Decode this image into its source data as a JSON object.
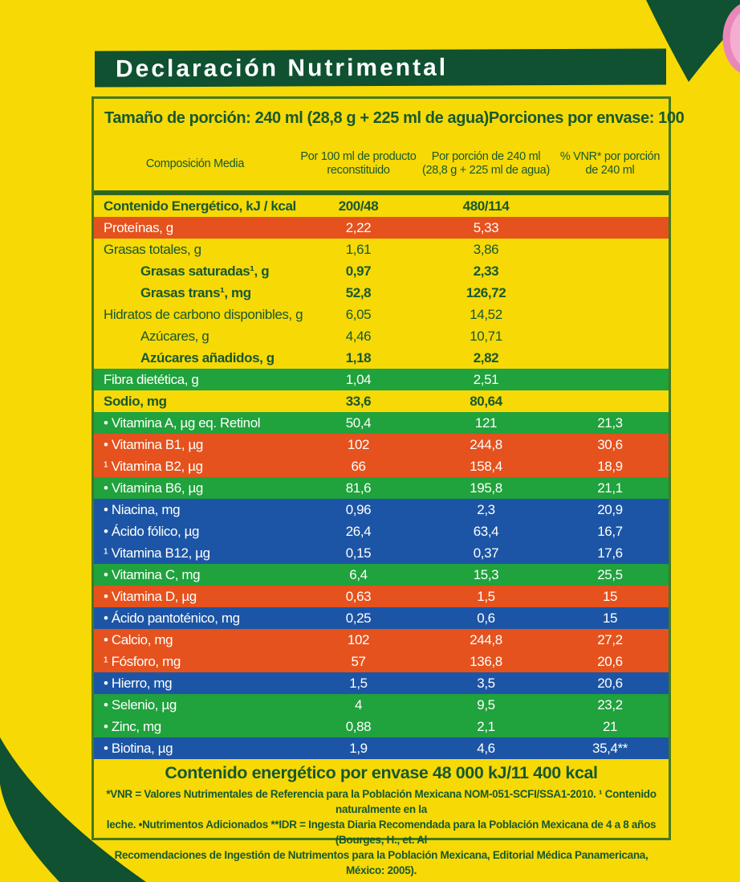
{
  "title": "Declaración Nutrimental",
  "colors": {
    "bg-yellow": "#F7D906",
    "dark-green": "#0F5130",
    "text-green": "#17592F",
    "border-green": "#44791F",
    "sep-green": "#2F661F",
    "row-orange": "#E5521D",
    "row-green": "#20A23C",
    "row-blue": "#1C55A5",
    "pink-outer": "#E887B8",
    "pink-inner": "#F4ACD0"
  },
  "portion": {
    "size_label": "Tamaño de porción: 240 ml (28,8 g + 225 ml de agua)",
    "per_package_label": "Porciones por envase: 100"
  },
  "table": {
    "columns": {
      "composition": "Composición Media",
      "per_100ml": "Por 100 ml de producto\nreconstituido",
      "per_portion": "Por porción de 240 ml\n(28,8 g + 225 ml de agua)",
      "vnr": "% VNR* por porción\nde 240 ml"
    },
    "rows": [
      {
        "label": "Contenido Energético, kJ / kcal",
        "bg": "yellow",
        "bold": true,
        "indent": false,
        "v1": "200/48",
        "v2": "480/114",
        "v3": ""
      },
      {
        "label": "Proteínas, g",
        "bg": "orange",
        "bold": false,
        "indent": false,
        "v1": "2,22",
        "v2": "5,33",
        "v3": ""
      },
      {
        "label": "Grasas totales, g",
        "bg": "yellow",
        "bold": false,
        "indent": false,
        "v1": "1,61",
        "v2": "3,86",
        "v3": ""
      },
      {
        "label": "Grasas saturadas¹, g",
        "bg": "yellow",
        "bold": true,
        "indent": true,
        "v1": "0,97",
        "v2": "2,33",
        "v3": ""
      },
      {
        "label": "Grasas trans¹, mg",
        "bg": "yellow",
        "bold": true,
        "indent": true,
        "v1": "52,8",
        "v2": "126,72",
        "v3": ""
      },
      {
        "label": "Hidratos de carbono disponibles, g",
        "bg": "yellow",
        "bold": false,
        "indent": false,
        "v1": "6,05",
        "v2": "14,52",
        "v3": ""
      },
      {
        "label": "Azúcares, g",
        "bg": "yellow",
        "bold": false,
        "indent": true,
        "v1": "4,46",
        "v2": "10,71",
        "v3": ""
      },
      {
        "label": "Azúcares añadidos, g",
        "bg": "yellow",
        "bold": true,
        "indent": true,
        "v1": "1,18",
        "v2": "2,82",
        "v3": ""
      },
      {
        "label": "Fibra dietética, g",
        "bg": "green",
        "bold": false,
        "indent": false,
        "v1": "1,04",
        "v2": "2,51",
        "v3": ""
      },
      {
        "label": "Sodio, mg",
        "bg": "yellow",
        "bold": true,
        "indent": false,
        "v1": "33,6",
        "v2": "80,64",
        "v3": ""
      },
      {
        "label": "• Vitamina A, µg eq. Retinol",
        "bg": "green",
        "bold": false,
        "indent": false,
        "v1": "50,4",
        "v2": "121",
        "v3": "21,3"
      },
      {
        "label": "• Vitamina B1, µg",
        "bg": "orange",
        "bold": false,
        "indent": false,
        "v1": "102",
        "v2": "244,8",
        "v3": "30,6"
      },
      {
        "label": "¹ Vitamina B2, µg",
        "bg": "orange",
        "bold": false,
        "indent": false,
        "v1": "66",
        "v2": "158,4",
        "v3": "18,9"
      },
      {
        "label": "• Vitamina B6, µg",
        "bg": "green",
        "bold": false,
        "indent": false,
        "v1": "81,6",
        "v2": "195,8",
        "v3": "21,1"
      },
      {
        "label": "• Niacina, mg",
        "bg": "blue",
        "bold": false,
        "indent": false,
        "v1": "0,96",
        "v2": "2,3",
        "v3": "20,9"
      },
      {
        "label": "• Ácido fólico, µg",
        "bg": "blue",
        "bold": false,
        "indent": false,
        "v1": "26,4",
        "v2": "63,4",
        "v3": "16,7"
      },
      {
        "label": "¹ Vitamina B12, µg",
        "bg": "blue",
        "bold": false,
        "indent": false,
        "v1": "0,15",
        "v2": "0,37",
        "v3": "17,6"
      },
      {
        "label": "• Vitamina C, mg",
        "bg": "green",
        "bold": false,
        "indent": false,
        "v1": "6,4",
        "v2": "15,3",
        "v3": "25,5"
      },
      {
        "label": "• Vitamina D, µg",
        "bg": "orange",
        "bold": false,
        "indent": false,
        "v1": "0,63",
        "v2": "1,5",
        "v3": "15"
      },
      {
        "label": "• Ácido pantoténico, mg",
        "bg": "blue",
        "bold": false,
        "indent": false,
        "v1": "0,25",
        "v2": "0,6",
        "v3": "15"
      },
      {
        "label": "• Calcio, mg",
        "bg": "orange",
        "bold": false,
        "indent": false,
        "v1": "102",
        "v2": "244,8",
        "v3": "27,2"
      },
      {
        "label": "¹ Fósforo, mg",
        "bg": "orange",
        "bold": false,
        "indent": false,
        "v1": "57",
        "v2": "136,8",
        "v3": "20,6"
      },
      {
        "label": "• Hierro, mg",
        "bg": "blue",
        "bold": false,
        "indent": false,
        "v1": "1,5",
        "v2": "3,5",
        "v3": "20,6"
      },
      {
        "label": "• Selenio, µg",
        "bg": "green",
        "bold": false,
        "indent": false,
        "v1": "4",
        "v2": "9,5",
        "v3": "23,2"
      },
      {
        "label": "• Zinc, mg",
        "bg": "green",
        "bold": false,
        "indent": false,
        "v1": "0,88",
        "v2": "2,1",
        "v3": "21"
      },
      {
        "label": "• Biotina, µg",
        "bg": "blue",
        "bold": false,
        "indent": false,
        "v1": "1,9",
        "v2": "4,6",
        "v3": "35,4**"
      }
    ]
  },
  "footer": {
    "energy_line": "Contenido energético por envase 48 000 kJ/11 400 kcal",
    "footnotes": "*VNR = Valores Nutrimentales de Referencia para la Población Mexicana NOM-051-SCFI/SSA1-2010. ¹ Contenido naturalmente en la\nleche. •Nutrimentos Adicionados   **IDR = Ingesta Diaria Recomendada para la Población Mexicana de 4 a 8 años (Bourges, H., et. Al\nRecomendaciones de Ingestión de Nutrimentos para la Población Mexicana, Editorial Médica Panamericana, México: 2005)."
  }
}
